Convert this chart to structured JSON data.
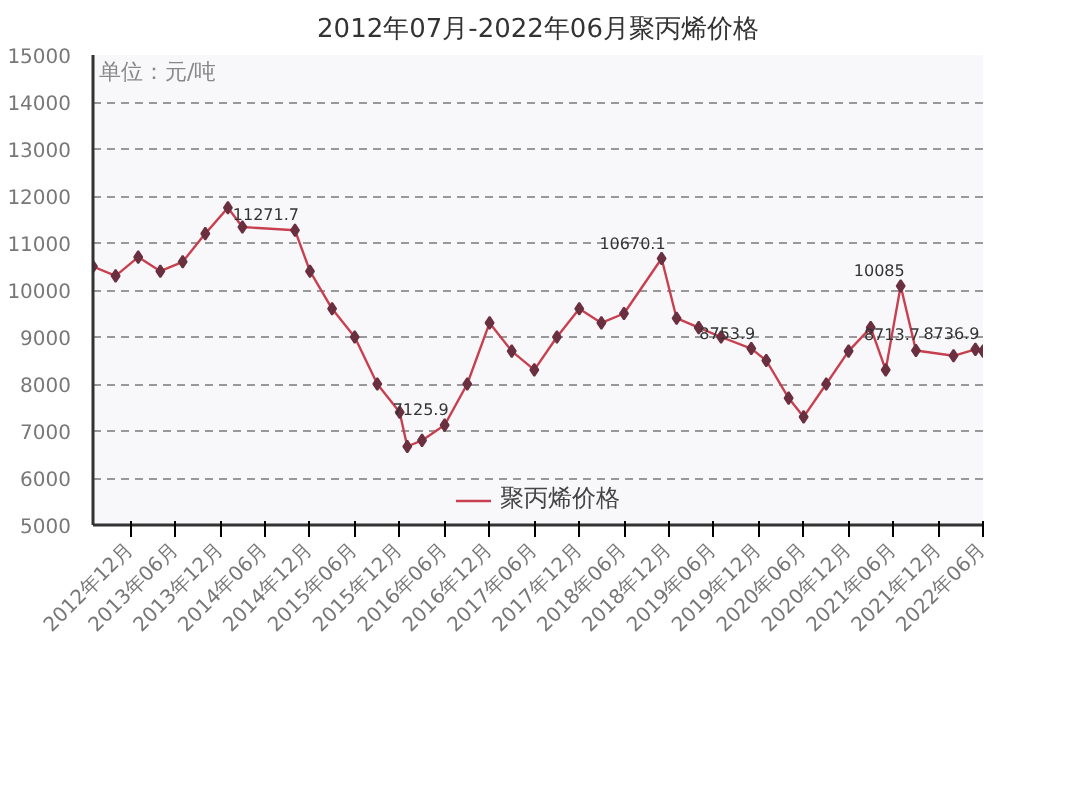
{
  "chart_data": {
    "type": "line",
    "title": "2012年07月-2022年06月聚丙烯价格",
    "ylabel": "单位：元/吨",
    "x": [
      "2012-07",
      "2012-10",
      "2013-01",
      "2013-04",
      "2013-07",
      "2013-10",
      "2014-01",
      "2014-03",
      "2014-10",
      "2014-12",
      "2015-03",
      "2015-06",
      "2015-09",
      "2015-12",
      "2016-01",
      "2016-03",
      "2016-06",
      "2016-09",
      "2016-12",
      "2017-03",
      "2017-06",
      "2017-09",
      "2017-12",
      "2018-03",
      "2018-06",
      "2018-11",
      "2019-01",
      "2019-04",
      "2019-07",
      "2019-11",
      "2020-01",
      "2020-04",
      "2020-06",
      "2020-09",
      "2020-12",
      "2021-03",
      "2021-05",
      "2021-07",
      "2021-09",
      "2022-02",
      "2022-05",
      "2022-06"
    ],
    "series": [
      {
        "name": "聚丙烯价格",
        "color": "#c8404f",
        "values": [
          10500,
          10300,
          10700,
          10400,
          10600,
          11200,
          11750,
          11340,
          11271.7,
          10400,
          9600,
          9000,
          8000,
          7400,
          6670,
          6800,
          7125.9,
          8000,
          9300,
          8700,
          8300,
          9000,
          9600,
          9300,
          9500,
          10670.1,
          9400,
          9200,
          9000,
          8753.9,
          8500,
          7700,
          7300,
          8000,
          8700,
          9200,
          8300,
          10085,
          8713.7,
          8600,
          8736.9,
          8700
        ],
        "value_labels": [
          null,
          null,
          null,
          null,
          null,
          null,
          null,
          null,
          "11271.7",
          null,
          null,
          null,
          null,
          null,
          null,
          null,
          "7125.9",
          null,
          null,
          null,
          null,
          null,
          null,
          null,
          null,
          "10670.1",
          null,
          null,
          null,
          "8753.9",
          null,
          null,
          null,
          null,
          null,
          null,
          null,
          "10085",
          "8713.7",
          null,
          "8736.9",
          null
        ]
      }
    ],
    "xlim": [
      "2012-07",
      "2022-06"
    ],
    "xticks": [
      {
        "value": "2012-12",
        "label": "2012年12月"
      },
      {
        "value": "2013-06",
        "label": "2013年06月"
      },
      {
        "value": "2013-12",
        "label": "2013年12月"
      },
      {
        "value": "2014-06",
        "label": "2014年06月"
      },
      {
        "value": "2014-12",
        "label": "2014年12月"
      },
      {
        "value": "2015-06",
        "label": "2015年06月"
      },
      {
        "value": "2015-12",
        "label": "2015年12月"
      },
      {
        "value": "2016-06",
        "label": "2016年06月"
      },
      {
        "value": "2016-12",
        "label": "2016年12月"
      },
      {
        "value": "2017-06",
        "label": "2017年06月"
      },
      {
        "value": "2017-12",
        "label": "2017年12月"
      },
      {
        "value": "2018-06",
        "label": "2018年06月"
      },
      {
        "value": "2018-12",
        "label": "2018年12月"
      },
      {
        "value": "2019-06",
        "label": "2019年06月"
      },
      {
        "value": "2019-12",
        "label": "2019年12月"
      },
      {
        "value": "2020-06",
        "label": "2020年06月"
      },
      {
        "value": "2020-12",
        "label": "2020年12月"
      },
      {
        "value": "2021-06",
        "label": "2021年06月"
      },
      {
        "value": "2021-12",
        "label": "2021年12月"
      },
      {
        "value": "2022-06",
        "label": "2022年06月"
      }
    ],
    "ylim": [
      5000,
      15000
    ],
    "yticks": [
      5000,
      6000,
      7000,
      8000,
      9000,
      10000,
      11000,
      12000,
      13000,
      14000,
      15000
    ],
    "grid": "y",
    "legend": "bottom",
    "marker": "diamond",
    "line_style": "solid"
  }
}
